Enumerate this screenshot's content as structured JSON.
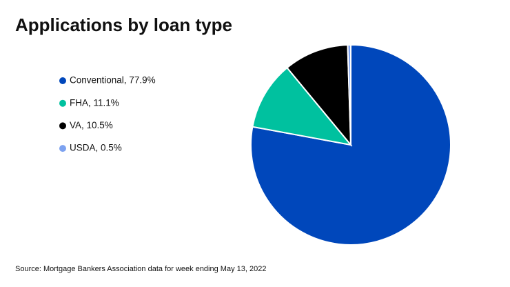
{
  "chart_data": {
    "type": "pie",
    "title": "Applications by loan type",
    "values": [
      77.9,
      11.1,
      10.5,
      0.5
    ],
    "value_labels": [
      "Conventional, 77.9%",
      "FHA, 11.1%",
      "VA, 10.5%",
      "USDA, 0.5%"
    ],
    "colors": [
      "#0047bb",
      "#00c19f",
      "#000000",
      "#7da2f0"
    ],
    "source": "Source: Mortgage Bankers Association data for week ending May 13, 2022"
  }
}
